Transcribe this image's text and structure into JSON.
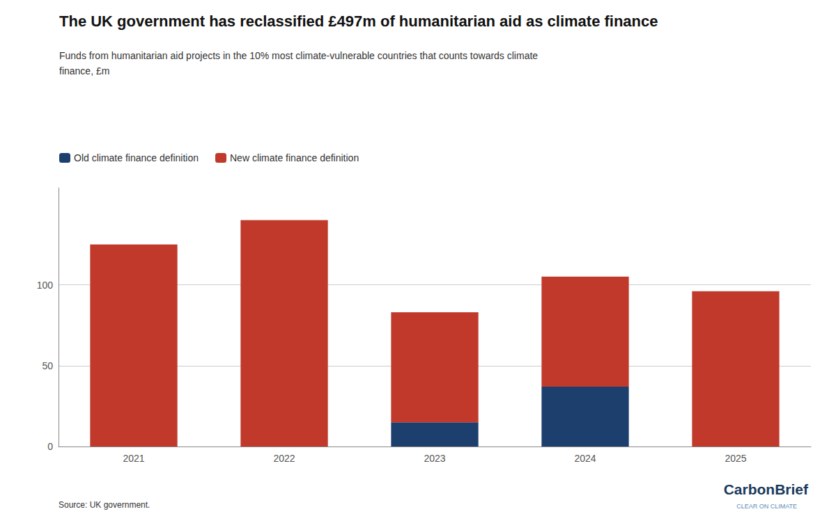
{
  "chart_data": {
    "type": "bar",
    "stacked": true,
    "title": "The UK government has reclassified £497m of humanitarian aid as climate finance",
    "subtitle": [
      "Funds from humanitarian aid projects in the 10% most climate-vulnerable countries that counts towards climate",
      "finance, £m"
    ],
    "categories": [
      "2021",
      "2022",
      "2023",
      "2024",
      "2025"
    ],
    "series": [
      {
        "name": "Old climate finance definition",
        "color": "#1d3f6e",
        "values": [
          0,
          0,
          15,
          37,
          0
        ]
      },
      {
        "name": "New climate finance definition",
        "color": "#c0392b",
        "values": [
          125,
          140,
          68,
          68,
          96
        ]
      }
    ],
    "ylim": [
      0,
      160
    ],
    "yticks": [
      0,
      50,
      100
    ],
    "grid": true,
    "legend": "upper left",
    "source": "Source: UK government.",
    "annotations": [
      "CarbonBrief",
      "CLEAR ON CLIMATE"
    ]
  }
}
